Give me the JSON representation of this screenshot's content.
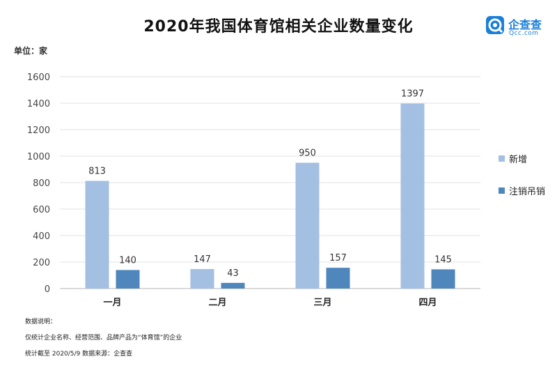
{
  "header": {
    "title": "2020年我国体育馆相关企业数量变化",
    "unit": "单位：家"
  },
  "logo": {
    "name": "企查查",
    "url": "Qcc.com"
  },
  "notes": {
    "heading": "数据说明：",
    "scope": "仅统计企业名称、经营范围、品牌产品为“体育馆”的企业",
    "source": "统计截至 2020/5/9   数据来源：企查查"
  },
  "chart_data": {
    "type": "bar",
    "title": "2020年我国体育馆相关企业数量变化",
    "categories": [
      "一月",
      "二月",
      "三月",
      "四月"
    ],
    "series": [
      {
        "name": "新增",
        "values": [
          813,
          147,
          950,
          1397
        ],
        "color": "#a3bfe1"
      },
      {
        "name": "注销吊销",
        "values": [
          140,
          43,
          157,
          145
        ],
        "color": "#4f86bb"
      }
    ],
    "ylim": [
      0,
      1600
    ],
    "yticks": [
      0,
      200,
      400,
      600,
      800,
      1000,
      1200,
      1400,
      1600
    ],
    "grid": true,
    "legend_position": "right"
  }
}
